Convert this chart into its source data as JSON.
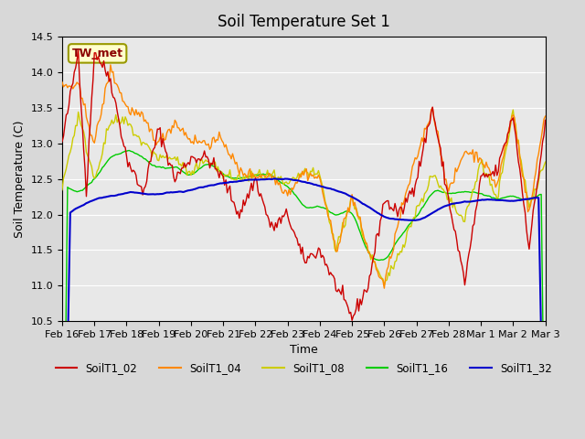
{
  "title": "Soil Temperature Set 1",
  "xlabel": "Time",
  "ylabel": "Soil Temperature (C)",
  "ylim": [
    10.5,
    14.5
  ],
  "annotation_text": "TW_met",
  "annotation_bg": "#ffffcc",
  "annotation_border": "#999900",
  "annotation_text_color": "#8b0000",
  "series_colors": {
    "SoilT1_02": "#cc0000",
    "SoilT1_04": "#ff8800",
    "SoilT1_08": "#cccc00",
    "SoilT1_16": "#00cc00",
    "SoilT1_32": "#0000cc"
  },
  "x_tick_labels": [
    "Feb 16",
    "Feb 17",
    "Feb 18",
    "Feb 19",
    "Feb 20",
    "Feb 21",
    "Feb 22",
    "Feb 23",
    "Feb 24",
    "Feb 25",
    "Feb 26",
    "Feb 27",
    "Feb 28",
    "Mar 1",
    "Mar 2",
    "Mar 3"
  ],
  "x_tick_positions": [
    0,
    24,
    48,
    72,
    96,
    120,
    144,
    168,
    192,
    216,
    240,
    264,
    288,
    312,
    336,
    360
  ],
  "yticks": [
    10.5,
    11.0,
    11.5,
    12.0,
    12.5,
    13.0,
    13.5,
    14.0,
    14.5
  ],
  "xp_02": [
    0,
    12,
    18,
    24,
    36,
    48,
    60,
    72,
    84,
    96,
    108,
    120,
    132,
    144,
    156,
    168,
    180,
    192,
    204,
    216,
    228,
    240,
    252,
    264,
    276,
    288,
    300,
    312,
    324,
    336,
    348,
    360
  ],
  "yp_02": [
    13.0,
    14.3,
    12.3,
    14.3,
    13.9,
    12.8,
    12.3,
    13.2,
    12.5,
    12.8,
    12.8,
    12.5,
    12.0,
    12.5,
    11.8,
    12.0,
    11.35,
    11.5,
    11.0,
    10.55,
    11.0,
    12.2,
    12.0,
    12.5,
    13.5,
    12.2,
    11.05,
    12.5,
    12.6,
    13.4,
    11.55,
    13.3
  ],
  "xp_04": [
    0,
    12,
    24,
    36,
    48,
    60,
    72,
    84,
    96,
    108,
    120,
    132,
    144,
    156,
    168,
    180,
    192,
    204,
    216,
    228,
    240,
    252,
    264,
    276,
    288,
    300,
    312,
    324,
    336,
    348,
    360
  ],
  "yp_04": [
    13.8,
    13.8,
    13.0,
    14.05,
    13.5,
    13.35,
    13.0,
    13.3,
    13.05,
    13.0,
    13.05,
    12.6,
    12.55,
    12.55,
    12.3,
    12.6,
    12.5,
    11.5,
    12.25,
    11.5,
    11.0,
    12.0,
    12.8,
    13.5,
    12.3,
    12.9,
    12.8,
    12.4,
    13.45,
    12.0,
    13.45
  ],
  "xp_08": [
    0,
    12,
    24,
    36,
    48,
    60,
    72,
    84,
    96,
    108,
    120,
    132,
    144,
    156,
    168,
    180,
    192,
    204,
    216,
    228,
    240,
    252,
    264,
    276,
    288,
    300,
    312,
    324,
    336,
    348,
    360
  ],
  "yp_08": [
    12.4,
    13.4,
    12.5,
    13.3,
    13.3,
    13.0,
    12.8,
    12.8,
    12.55,
    12.8,
    12.55,
    12.5,
    12.55,
    12.55,
    12.4,
    12.6,
    12.55,
    11.5,
    12.25,
    11.5,
    11.0,
    11.5,
    12.05,
    12.55,
    12.2,
    11.9,
    12.75,
    12.2,
    13.45,
    12.1,
    12.75
  ],
  "xp_16": [
    0,
    12,
    24,
    36,
    48,
    60,
    72,
    84,
    96,
    108,
    120,
    132,
    144,
    156,
    168,
    180,
    192,
    204,
    216,
    228,
    240,
    252,
    264,
    276,
    288,
    300,
    312,
    324,
    336,
    348,
    360
  ],
  "yp_16": [
    12.4,
    12.3,
    12.5,
    12.8,
    12.9,
    12.8,
    12.65,
    12.65,
    12.55,
    12.75,
    12.55,
    12.5,
    12.55,
    12.55,
    12.4,
    12.1,
    12.1,
    12.0,
    12.05,
    11.4,
    11.35,
    11.7,
    12.0,
    12.35,
    12.3,
    12.3,
    12.3,
    12.2,
    12.25,
    12.2,
    12.3
  ],
  "xp_32": [
    0,
    12,
    24,
    48,
    72,
    96,
    120,
    144,
    168,
    192,
    216,
    240,
    264,
    288,
    312,
    336,
    360
  ],
  "yp_32": [
    11.95,
    12.1,
    12.22,
    12.3,
    12.28,
    12.35,
    12.45,
    12.5,
    12.5,
    12.4,
    12.25,
    11.95,
    11.9,
    12.15,
    12.2,
    12.2,
    12.25
  ]
}
